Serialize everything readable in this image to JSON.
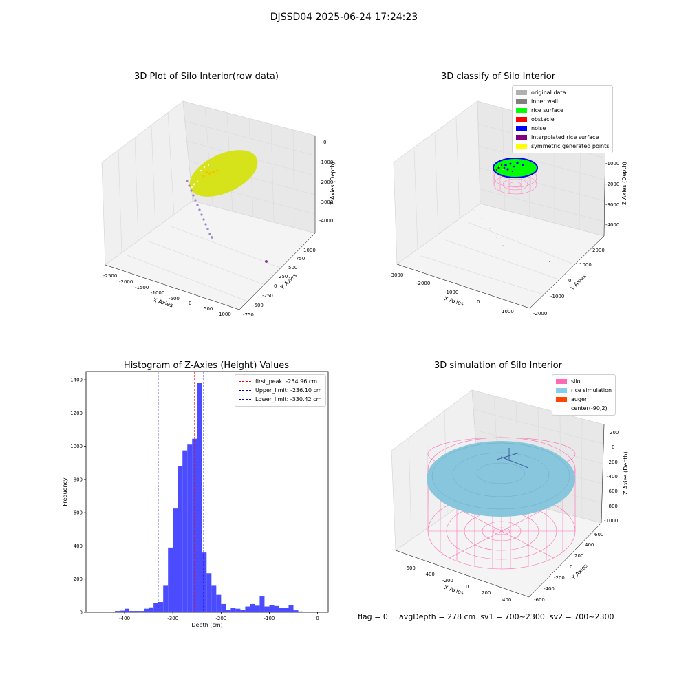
{
  "suptitle": "DJSSD04 2025-06-24 17:24:23",
  "plot1": {
    "title": "3D Plot of Silo Interior(row data)",
    "xlabel": "X Axies",
    "ylabel": "Y Axies",
    "zlabel": "Z Axies (Depth)",
    "xticks": [
      "-2500",
      "-2000",
      "-1500",
      "-1000",
      "-500",
      "0",
      "500",
      "1000"
    ],
    "yticks": [
      "-750",
      "-500",
      "-250",
      "0",
      "250",
      "500",
      "750",
      "1000"
    ],
    "zticks": [
      "0",
      "-1000",
      "-2000",
      "-3000",
      "-4000"
    ]
  },
  "plot2": {
    "title": "3D classify of Silo Interior",
    "xlabel": "X Axies",
    "ylabel": "Y Axies",
    "zlabel": "Z Axies (Depth)",
    "xticks": [
      "-3000",
      "-2000",
      "-1000",
      "0",
      "1000"
    ],
    "yticks": [
      "-2000",
      "-1000",
      "0",
      "1000",
      "2000"
    ],
    "zticks": [
      "-1000",
      "-2000",
      "-3000",
      "-4000"
    ],
    "legend": [
      {
        "label": "original data",
        "color": "#b0b0b0"
      },
      {
        "label": "inner wall",
        "color": "#808080"
      },
      {
        "label": "rice surface",
        "color": "#00ff00"
      },
      {
        "label": "obstacle",
        "color": "#ff0000"
      },
      {
        "label": "noise",
        "color": "#0000ff"
      },
      {
        "label": "interpolated rice surface",
        "color": "#800080"
      },
      {
        "label": "symmetric generated points",
        "color": "#ffff00"
      }
    ]
  },
  "plot4": {
    "title": "3D simulation of Silo Interior",
    "xlabel": "X Axies",
    "ylabel": "Y Axies",
    "zlabel": "Z Axies (Depth)",
    "xticks": [
      "-600",
      "-400",
      "-200",
      "0",
      "200",
      "400"
    ],
    "yticks": [
      "-600",
      "-400",
      "-200",
      "0",
      "200",
      "400",
      "600"
    ],
    "zticks": [
      "200",
      "0",
      "-200",
      "-400",
      "-600",
      "-800",
      "-1000"
    ],
    "legend": [
      {
        "label": "silo",
        "color": "#ff69b4"
      },
      {
        "label": "rice simulation",
        "color": "#87ceeb"
      },
      {
        "label": "auger",
        "color": "#ff4500"
      },
      {
        "label": "center(-90,2)",
        "color": ""
      }
    ]
  },
  "footer": {
    "flag": "flag = 0",
    "stats": "avgDepth = 278 cm  sv1 = 700~2300  sv2 = 700~2300"
  },
  "chart_data": {
    "type": "bar",
    "title": "Histogram of Z-Axies (Height) Values",
    "xlabel": "Depth (cm)",
    "ylabel": "Frequency",
    "xlim": [
      -480,
      22
    ],
    "ylim": [
      0,
      1450
    ],
    "xticks": [
      -400,
      -300,
      -200,
      -100,
      0
    ],
    "yticks": [
      0,
      200,
      400,
      600,
      800,
      1000,
      1200,
      1400
    ],
    "bar_color": "#4b4bff",
    "bin_edges": [
      -470,
      -460,
      -450,
      -440,
      -430,
      -420,
      -410,
      -400,
      -390,
      -380,
      -370,
      -360,
      -350,
      -340,
      -330,
      -320,
      -310,
      -300,
      -290,
      -280,
      -270,
      -260,
      -250,
      -240,
      -230,
      -220,
      -210,
      -200,
      -190,
      -180,
      -170,
      -160,
      -150,
      -140,
      -130,
      -120,
      -110,
      -100,
      -90,
      -80,
      -70,
      -60,
      -50,
      -40,
      -30
    ],
    "values": [
      3,
      3,
      3,
      3,
      3,
      8,
      10,
      22,
      8,
      8,
      8,
      22,
      30,
      55,
      62,
      160,
      390,
      625,
      880,
      975,
      1010,
      1045,
      1380,
      360,
      235,
      160,
      105,
      50,
      15,
      28,
      22,
      15,
      35,
      50,
      40,
      95,
      35,
      42,
      38,
      25,
      25,
      45,
      12,
      5
    ],
    "lines": [
      {
        "label": "first_peak: -254.96 cm",
        "x": -254.96,
        "color": "#ff0000"
      },
      {
        "label": "Upper_limit: -236.10 cm",
        "x": -236.1,
        "color": "#0000cc"
      },
      {
        "label": "Lower_limit: -330.42 cm",
        "x": -330.42,
        "color": "#0000cc"
      }
    ],
    "legend_loc": "upper right",
    "grid": false
  }
}
